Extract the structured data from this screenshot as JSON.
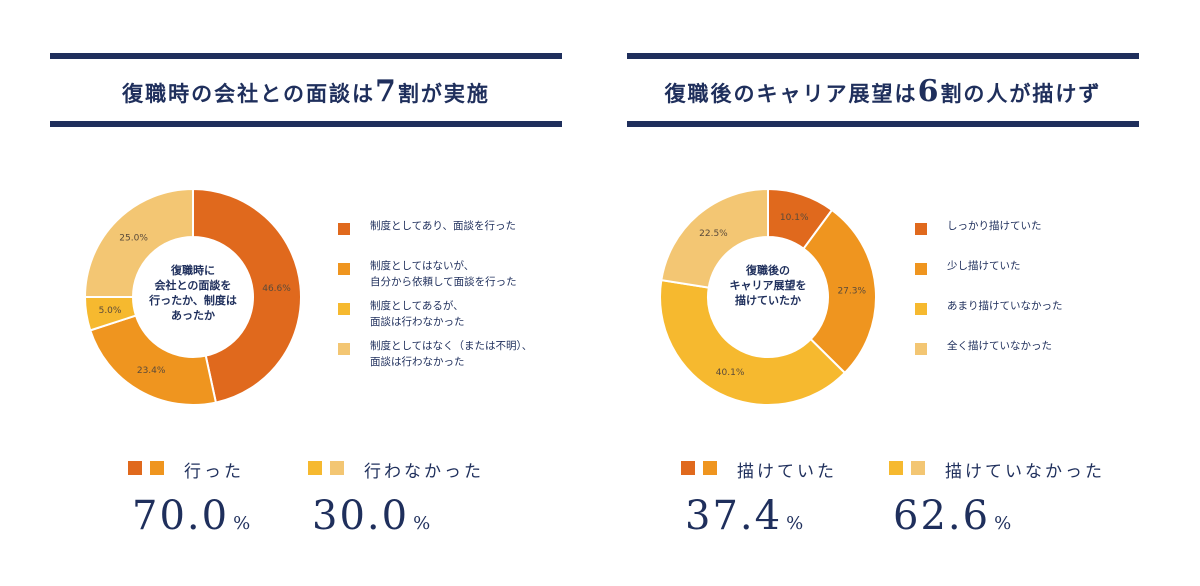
{
  "colors": {
    "navy": "#1f2f5c",
    "orange_dark": "#e0691d",
    "orange": "#ef951f",
    "amber": "#f6b92f",
    "light": "#f3c673"
  },
  "chart_data": [
    {
      "type": "pie",
      "title": "復職時の会社との面談は7割が実施",
      "title_parts": [
        "復職時の会社との面談は",
        "7",
        "割が実施"
      ],
      "center_label": "復職時に\n会社との面談を\n行ったか、制度は\nあったか",
      "slices": [
        {
          "label": "制度としてあり、面談を行った",
          "value": 46.6,
          "display": "46.6%",
          "color": "#e0691d"
        },
        {
          "label": "制度としてはないが、\n自分から依頼して面談を行った",
          "value": 23.4,
          "display": "23.4%",
          "color": "#ef951f"
        },
        {
          "label": "制度としてあるが、\n面談は行わなかった",
          "value": 5.0,
          "display": "5.0%",
          "color": "#f6b92f"
        },
        {
          "label": "制度としてはなく（または不明）、\n面談は行わなかった",
          "value": 25.0,
          "display": "25.0%",
          "color": "#f3c673"
        }
      ],
      "summary": [
        {
          "label": "行った",
          "value": "70.0",
          "unit": "%",
          "swatches": [
            "#e0691d",
            "#ef951f"
          ]
        },
        {
          "label": "行わなかった",
          "value": "30.0",
          "unit": "%",
          "swatches": [
            "#f6b92f",
            "#f3c673"
          ]
        }
      ]
    },
    {
      "type": "pie",
      "title": "復職後のキャリア展望は6割の人が描けず",
      "title_parts": [
        "復職後のキャリア展望は",
        "6",
        "割の人が描けず"
      ],
      "center_label": "復職後の\nキャリア展望を\n描けていたか",
      "slices": [
        {
          "label": "しっかり描けていた",
          "value": 10.1,
          "display": "10.1%",
          "color": "#e0691d"
        },
        {
          "label": "少し描けていた",
          "value": 27.3,
          "display": "27.3%",
          "color": "#ef951f"
        },
        {
          "label": "あまり描けていなかった",
          "value": 40.1,
          "display": "40.1%",
          "color": "#f6b92f"
        },
        {
          "label": "全く描けていなかった",
          "value": 22.5,
          "display": "22.5%",
          "color": "#f3c673"
        }
      ],
      "summary": [
        {
          "label": "描けていた",
          "value": "37.4",
          "unit": "%",
          "swatches": [
            "#e0691d",
            "#ef951f"
          ]
        },
        {
          "label": "描けていなかった",
          "value": "62.6",
          "unit": "%",
          "swatches": [
            "#f6b92f",
            "#f3c673"
          ]
        }
      ]
    }
  ]
}
